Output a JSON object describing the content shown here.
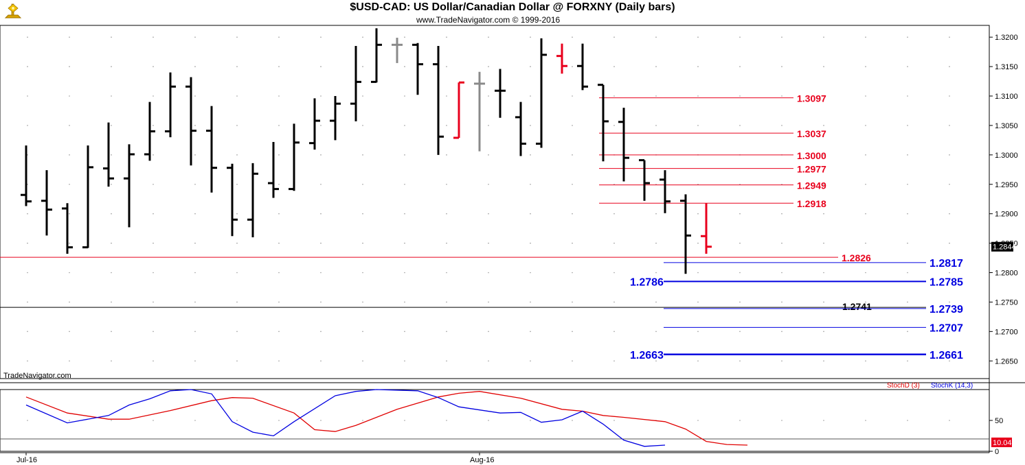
{
  "header": {
    "title": "$USD-CAD:  US Dollar/Canadian Dollar @ FORXNY  (Daily bars)",
    "subtitle": "www.TradeNavigator.com © 1999-2016"
  },
  "watermark": "TradeNavigator.com",
  "logo_icon": "trade-navigator-logo-icon",
  "colors": {
    "up_black": "#000000",
    "red": "#e8001c",
    "gray": "#8a8a8a",
    "blue": "#0000e0",
    "stoch_d": "#e00000",
    "stoch_k": "#0000e0"
  },
  "chart_data": [
    {
      "type": "ohlc",
      "title": "$USD-CAD:  US Dollar/Canadian Dollar @ FORXNY  (Daily bars)",
      "ylim": [
        1.262,
        1.322
      ],
      "y_ticks": [
        "1.3200",
        "1.3150",
        "1.3100",
        "1.3050",
        "1.3000",
        "1.2950",
        "1.2900",
        "1.2850",
        "1.2800",
        "1.2750",
        "1.2700",
        "1.2650"
      ],
      "x_labels": [
        {
          "label": "Jul-16",
          "index": 0
        },
        {
          "label": "Aug-16",
          "index": 22
        }
      ],
      "last_price": "1.2844",
      "bars": [
        {
          "open": 1.2932,
          "high": 1.3016,
          "low": 1.2913,
          "close": 1.2921,
          "color": "black"
        },
        {
          "open": 1.2922,
          "high": 1.2974,
          "low": 1.2863,
          "close": 1.2907,
          "color": "black"
        },
        {
          "open": 1.2909,
          "high": 1.2918,
          "low": 1.2832,
          "close": 1.2843,
          "color": "black"
        },
        {
          "open": 1.2843,
          "high": 1.3016,
          "low": 1.2842,
          "close": 1.2979,
          "color": "black"
        },
        {
          "open": 1.2977,
          "high": 1.3055,
          "low": 1.2946,
          "close": 1.296,
          "color": "black"
        },
        {
          "open": 1.296,
          "high": 1.3018,
          "low": 1.2877,
          "close": 1.3001,
          "color": "black"
        },
        {
          "open": 1.3001,
          "high": 1.309,
          "low": 1.299,
          "close": 1.304,
          "color": "black"
        },
        {
          "open": 1.304,
          "high": 1.314,
          "low": 1.303,
          "close": 1.3116,
          "color": "black"
        },
        {
          "open": 1.3116,
          "high": 1.3132,
          "low": 1.2982,
          "close": 1.3041,
          "color": "black"
        },
        {
          "open": 1.3041,
          "high": 1.3083,
          "low": 1.2936,
          "close": 1.2978,
          "color": "black"
        },
        {
          "open": 1.2978,
          "high": 1.2985,
          "low": 1.2862,
          "close": 1.289,
          "color": "black"
        },
        {
          "open": 1.289,
          "high": 1.2986,
          "low": 1.286,
          "close": 1.2968,
          "color": "black"
        },
        {
          "open": 1.2952,
          "high": 1.3022,
          "low": 1.2927,
          "close": 1.2942,
          "color": "black"
        },
        {
          "open": 1.2942,
          "high": 1.3053,
          "low": 1.2939,
          "close": 1.3021,
          "color": "black"
        },
        {
          "open": 1.302,
          "high": 1.3096,
          "low": 1.3009,
          "close": 1.3058,
          "color": "black"
        },
        {
          "open": 1.3058,
          "high": 1.31,
          "low": 1.3025,
          "close": 1.3087,
          "color": "black"
        },
        {
          "open": 1.3087,
          "high": 1.3185,
          "low": 1.3057,
          "close": 1.3124,
          "color": "black"
        },
        {
          "open": 1.3124,
          "high": 1.3215,
          "low": 1.3123,
          "close": 1.3187,
          "color": "black"
        },
        {
          "open": 1.3187,
          "high": 1.3199,
          "low": 1.3156,
          "close": 1.3187,
          "color": "gray"
        },
        {
          "open": 1.3187,
          "high": 1.319,
          "low": 1.3102,
          "close": 1.3154,
          "color": "black"
        },
        {
          "open": 1.3154,
          "high": 1.3185,
          "low": 1.3,
          "close": 1.3031,
          "color": "black"
        },
        {
          "open": 1.3029,
          "high": 1.3123,
          "low": 1.3029,
          "close": 1.3123,
          "color": "red"
        },
        {
          "open": 1.3121,
          "high": 1.3141,
          "low": 1.3006,
          "close": 1.3121,
          "color": "gray"
        },
        {
          "open": 1.3109,
          "high": 1.3146,
          "low": 1.3063,
          "close": 1.3109,
          "color": "black"
        },
        {
          "open": 1.3064,
          "high": 1.309,
          "low": 1.2998,
          "close": 1.3019,
          "color": "black"
        },
        {
          "open": 1.3019,
          "high": 1.3198,
          "low": 1.3012,
          "close": 1.317,
          "color": "black"
        },
        {
          "open": 1.3168,
          "high": 1.3189,
          "low": 1.3138,
          "close": 1.3151,
          "color": "red"
        },
        {
          "open": 1.3151,
          "high": 1.3189,
          "low": 1.311,
          "close": 1.3116,
          "color": "black"
        },
        {
          "open": 1.3119,
          "high": 1.3119,
          "low": 1.2989,
          "close": 1.3057,
          "color": "black"
        },
        {
          "open": 1.3056,
          "high": 1.308,
          "low": 1.2955,
          "close": 1.2995,
          "color": "black"
        },
        {
          "open": 1.2991,
          "high": 1.2991,
          "low": 1.2922,
          "close": 1.2952,
          "color": "black"
        },
        {
          "open": 1.2958,
          "high": 1.2974,
          "low": 1.2901,
          "close": 1.2921,
          "color": "black"
        },
        {
          "open": 1.2922,
          "high": 1.2933,
          "low": 1.2798,
          "close": 1.2863,
          "color": "black"
        },
        {
          "open": 1.2862,
          "high": 1.2918,
          "low": 1.2832,
          "close": 1.2844,
          "color": "red"
        }
      ],
      "horizontal_lines": [
        {
          "label": "1.3097",
          "value": 1.3097,
          "color": "red"
        },
        {
          "label": "1.3037",
          "value": 1.3037,
          "color": "red"
        },
        {
          "label": "1.3000",
          "value": 1.3,
          "color": "red"
        },
        {
          "label": "1.2977",
          "value": 1.2977,
          "color": "red"
        },
        {
          "label": "1.2949",
          "value": 1.2949,
          "color": "red"
        },
        {
          "label": "1.2918",
          "value": 1.2918,
          "color": "red"
        },
        {
          "label": "1.2826",
          "value": 1.2826,
          "color": "red"
        },
        {
          "label": "1.2817",
          "value": 1.2817,
          "color": "blue"
        },
        {
          "label": "1.2785",
          "value": 1.2785,
          "color": "blue",
          "left_label": "1.2786"
        },
        {
          "label": "1.2741",
          "value": 1.2741,
          "color": "black"
        },
        {
          "label": "1.2739",
          "value": 1.2739,
          "color": "blue"
        },
        {
          "label": "1.2707",
          "value": 1.2707,
          "color": "blue"
        },
        {
          "label": "1.2661",
          "value": 1.2661,
          "color": "blue",
          "left_label": "1.2663"
        }
      ]
    },
    {
      "type": "line",
      "legend": [
        "StochD (3)",
        "StochK (14,3)"
      ],
      "y_ticks": [
        "50",
        "0"
      ],
      "ylim": [
        0,
        100
      ],
      "last_value": "10.04",
      "series": [
        {
          "name": "StochD (3)",
          "color": "red",
          "values": [
            [
              0,
              88
            ],
            [
              2,
              62
            ],
            [
              4,
              52
            ],
            [
              5,
              52
            ],
            [
              7,
              66
            ],
            [
              9,
              82
            ],
            [
              10,
              87
            ],
            [
              11,
              86
            ],
            [
              13,
              62
            ],
            [
              14,
              35
            ],
            [
              15,
              32
            ],
            [
              16,
              42
            ],
            [
              18,
              68
            ],
            [
              20,
              88
            ],
            [
              21,
              94
            ],
            [
              22,
              97
            ],
            [
              24,
              86
            ],
            [
              26,
              68
            ],
            [
              27,
              65
            ],
            [
              28,
              58
            ],
            [
              29,
              55
            ],
            [
              31,
              48
            ],
            [
              32,
              36
            ],
            [
              33,
              16
            ],
            [
              34,
              11
            ],
            [
              35,
              10
            ]
          ]
        },
        {
          "name": "StochK (14,3)",
          "color": "blue",
          "values": [
            [
              0,
              75
            ],
            [
              2,
              46
            ],
            [
              4,
              58
            ],
            [
              5,
              75
            ],
            [
              6,
              85
            ],
            [
              7,
              98
            ],
            [
              8,
              100
            ],
            [
              9,
              93
            ],
            [
              10,
              48
            ],
            [
              11,
              31
            ],
            [
              12,
              25
            ],
            [
              13,
              48
            ],
            [
              15,
              90
            ],
            [
              16,
              97
            ],
            [
              17,
              100
            ],
            [
              19,
              98
            ],
            [
              20,
              87
            ],
            [
              21,
              72
            ],
            [
              23,
              62
            ],
            [
              24,
              63
            ],
            [
              25,
              47
            ],
            [
              26,
              51
            ],
            [
              27,
              65
            ],
            [
              28,
              44
            ],
            [
              29,
              18
            ],
            [
              30,
              8
            ],
            [
              31,
              10
            ]
          ]
        }
      ]
    }
  ]
}
